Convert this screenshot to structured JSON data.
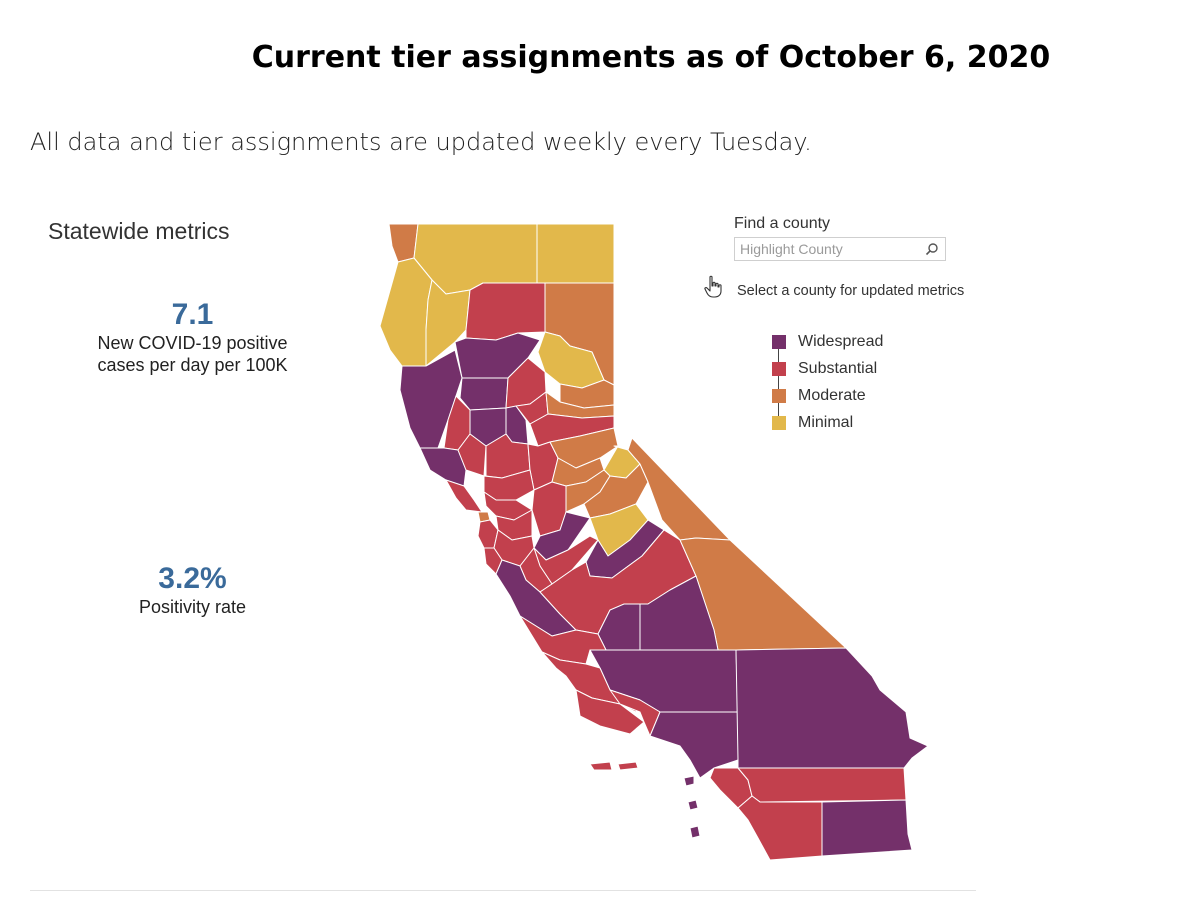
{
  "title": "Current tier assignments as of October 6, 2020",
  "subtitle": "All data and tier assignments are updated weekly every Tuesday.",
  "metrics": {
    "heading": "Statewide metrics",
    "cases_value": "7.1",
    "cases_label_line1": "New COVID-19 positive",
    "cases_label_line2": "cases per day per 100K",
    "positivity_value": "3.2%",
    "positivity_label": "Positivity rate"
  },
  "find": {
    "title": "Find a county",
    "placeholder": "Highlight County",
    "hint": "Select a county for updated metrics"
  },
  "colors": {
    "widespread": "#74306a",
    "substantial": "#c2404d",
    "moderate": "#d07b47",
    "minimal": "#e2b84b",
    "metric_value": "#3a6a9a"
  },
  "legend": [
    {
      "label": "Widespread",
      "color": "#74306a"
    },
    {
      "label": "Substantial",
      "color": "#c2404d"
    },
    {
      "label": "Moderate",
      "color": "#d07b47"
    },
    {
      "label": "Minimal",
      "color": "#e2b84b"
    }
  ],
  "map": {
    "region": "California",
    "tiers_shown": [
      "Widespread",
      "Substantial",
      "Moderate",
      "Minimal"
    ]
  }
}
